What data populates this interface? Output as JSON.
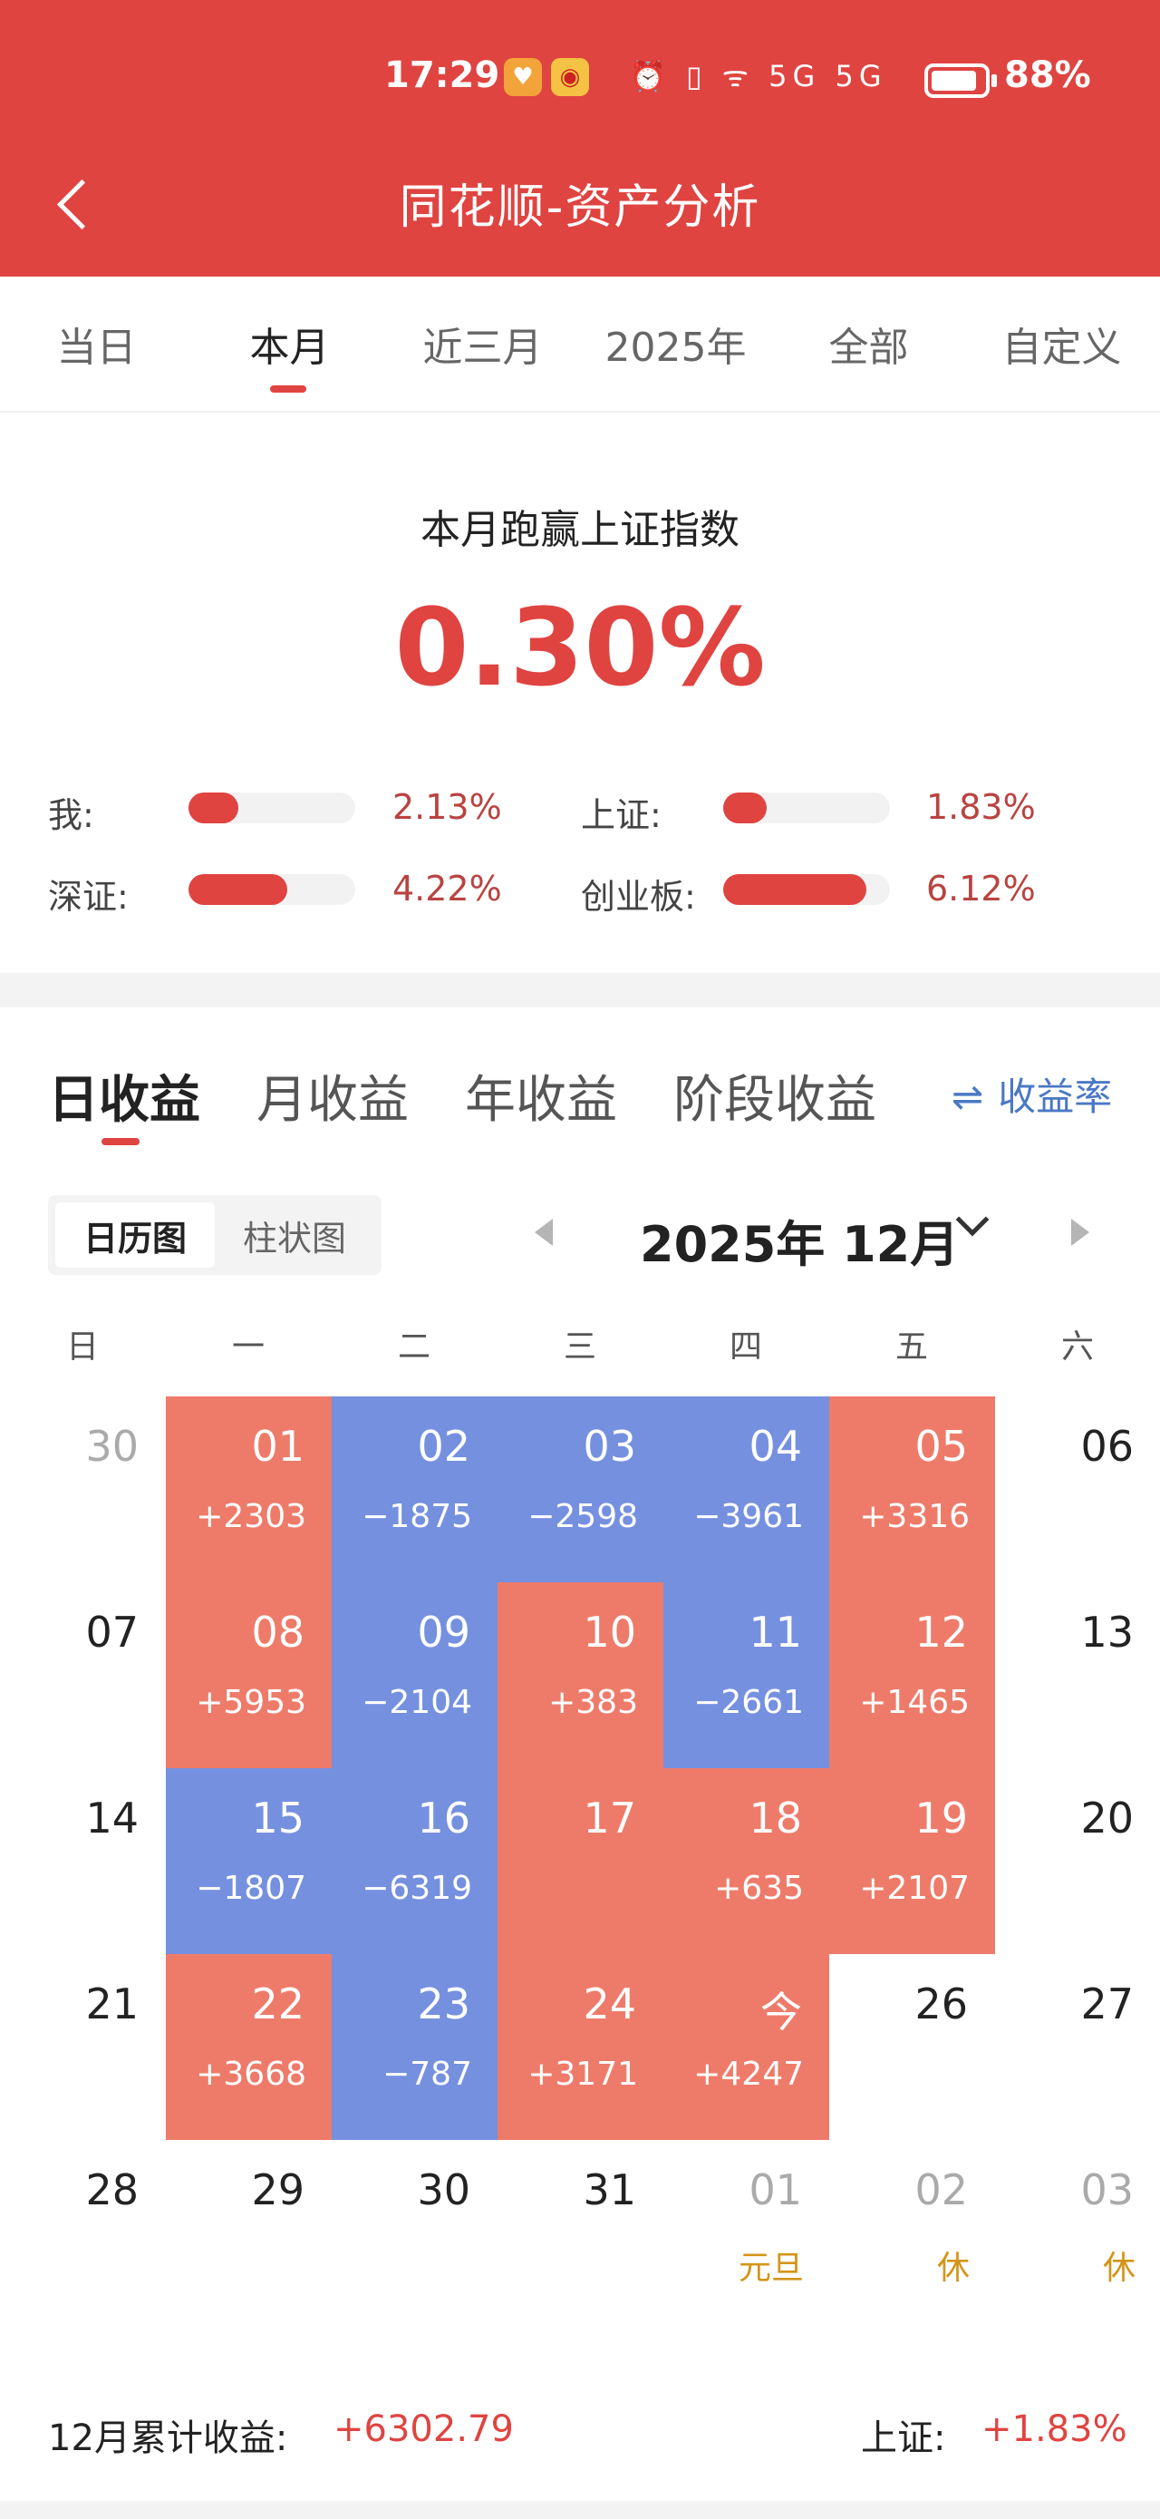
{
  "status_bar": {
    "time": "17:29",
    "indicators": "⏰ ▯ ᯤ 5G 5G",
    "battery_percent": "88%",
    "battery_level": 0.88
  },
  "header": {
    "title": "同花顺-资产分析"
  },
  "period_tabs": [
    "当日",
    "本月",
    "近三月",
    "2025年",
    "全部",
    "自定义"
  ],
  "period_active": 1,
  "beat": {
    "title": "本月跑赢上证指数",
    "value": "0.30%"
  },
  "comparisons": [
    {
      "label": "我:",
      "value": "2.13%",
      "level": 0.3
    },
    {
      "label": "上证:",
      "value": "1.83%",
      "level": 0.26
    },
    {
      "label": "深证:",
      "value": "4.22%",
      "level": 0.59
    },
    {
      "label": "创业板:",
      "value": "6.12%",
      "level": 0.86
    }
  ],
  "income_tabs": [
    "日收益",
    "月收益",
    "年收益",
    "阶段收益"
  ],
  "income_active": 0,
  "rate_link": "收益率",
  "view_toggle": [
    "日历图",
    "柱状图"
  ],
  "view_active": 0,
  "month_label": "2025年 12月",
  "weekdays": [
    "日",
    "一",
    "二",
    "三",
    "四",
    "五",
    "六"
  ],
  "colors": {
    "gain": "#ee7b6a",
    "loss": "#7590df",
    "accent": "#df4441",
    "holiday": "#d49418"
  },
  "calendar": [
    [
      {
        "day": "30",
        "style": "muted"
      },
      {
        "day": "01",
        "value": "+2303",
        "style": "gain"
      },
      {
        "day": "02",
        "value": "−1875",
        "style": "loss"
      },
      {
        "day": "03",
        "value": "−2598",
        "style": "loss"
      },
      {
        "day": "04",
        "value": "−3961",
        "style": "loss"
      },
      {
        "day": "05",
        "value": "+3316",
        "style": "gain"
      },
      {
        "day": "06",
        "style": "plain"
      }
    ],
    [
      {
        "day": "07",
        "style": "plain"
      },
      {
        "day": "08",
        "value": "+5953",
        "style": "gain"
      },
      {
        "day": "09",
        "value": "−2104",
        "style": "loss"
      },
      {
        "day": "10",
        "value": "+383",
        "style": "gain"
      },
      {
        "day": "11",
        "value": "−2661",
        "style": "loss"
      },
      {
        "day": "12",
        "value": "+1465",
        "style": "gain"
      },
      {
        "day": "13",
        "style": "plain"
      }
    ],
    [
      {
        "day": "14",
        "style": "plain"
      },
      {
        "day": "15",
        "value": "−1807",
        "style": "loss"
      },
      {
        "day": "16",
        "value": "−6319",
        "style": "loss"
      },
      {
        "day": "17",
        "value": "",
        "style": "gain"
      },
      {
        "day": "18",
        "value": "+635",
        "style": "gain"
      },
      {
        "day": "19",
        "value": "+2107",
        "style": "gain"
      },
      {
        "day": "20",
        "style": "plain"
      }
    ],
    [
      {
        "day": "21",
        "style": "plain"
      },
      {
        "day": "22",
        "value": "+3668",
        "style": "gain"
      },
      {
        "day": "23",
        "value": "−787",
        "style": "loss"
      },
      {
        "day": "24",
        "value": "+3171",
        "style": "gain"
      },
      {
        "day": "今",
        "value": "+4247",
        "style": "gain"
      },
      {
        "day": "26",
        "style": "plain"
      },
      {
        "day": "27",
        "style": "plain"
      }
    ],
    [
      {
        "day": "28",
        "style": "plain"
      },
      {
        "day": "29",
        "style": "plain"
      },
      {
        "day": "30",
        "style": "plain"
      },
      {
        "day": "31",
        "style": "plain"
      },
      {
        "day": "01",
        "note": "元旦",
        "style": "muted"
      },
      {
        "day": "02",
        "note": "休",
        "style": "muted"
      },
      {
        "day": "03",
        "note": "休",
        "style": "muted"
      }
    ]
  ],
  "summary": {
    "label": "12月累计收益:",
    "value": "+6302.79",
    "index_label": "上证:",
    "index_value": "+1.83%"
  }
}
